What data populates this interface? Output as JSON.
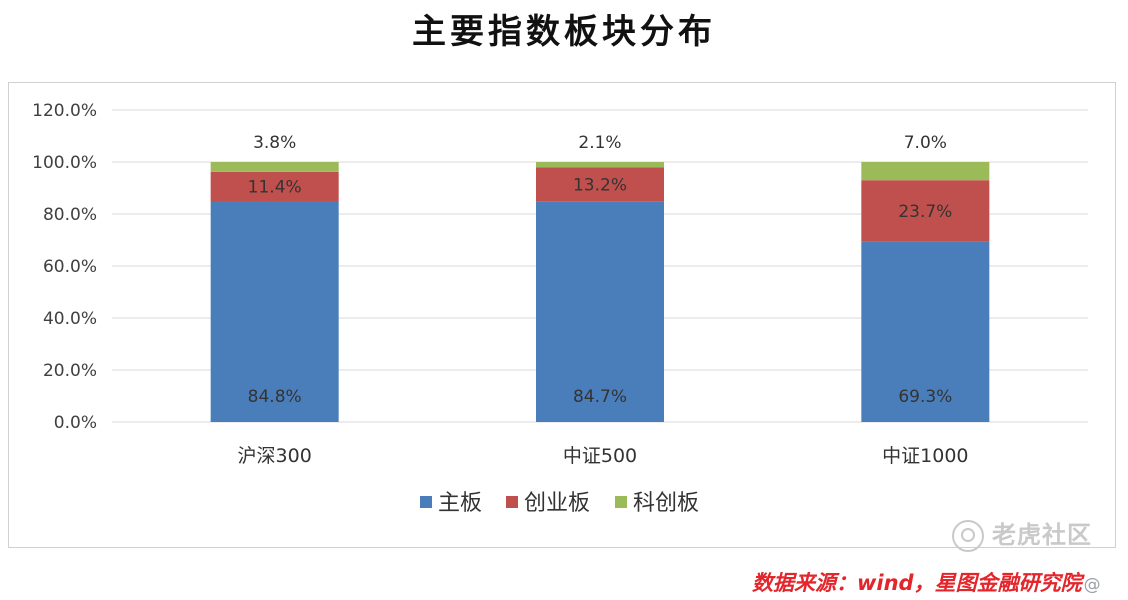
{
  "title": "主要指数板块分布",
  "colors": {
    "主板": "#4a7ebb",
    "创业板": "#c0504d",
    "科创板": "#9bbb59"
  },
  "chart_data": {
    "type": "bar",
    "stacked": true,
    "title": "主要指数板块分布",
    "categories": [
      "沪深300",
      "中证500",
      "中证1000"
    ],
    "series": [
      {
        "name": "主板",
        "values": [
          84.8,
          84.7,
          69.3
        ],
        "labels": [
          "84.8%",
          "84.7%",
          "69.3%"
        ]
      },
      {
        "name": "创业板",
        "values": [
          11.4,
          13.2,
          23.7
        ],
        "labels": [
          "11.4%",
          "13.2%",
          "23.7%"
        ]
      },
      {
        "name": "科创板",
        "values": [
          3.8,
          2.1,
          7.0
        ],
        "labels": [
          "3.8%",
          "2.1%",
          "7.0%"
        ]
      }
    ],
    "ylim": [
      0,
      120
    ],
    "yticks": [
      "0.0%",
      "20.0%",
      "40.0%",
      "60.0%",
      "80.0%",
      "100.0%",
      "120.0%"
    ],
    "grid": true,
    "legend_position": "bottom"
  },
  "watermark": "老虎社区",
  "source": {
    "text": "数据来源：wind，星图金融研究院",
    "handle": "@"
  }
}
